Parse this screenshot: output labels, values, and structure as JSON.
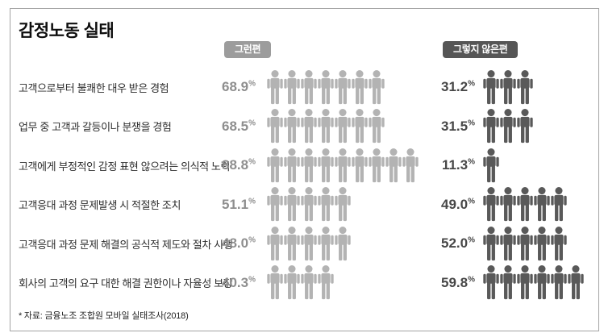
{
  "page": {
    "title": "감정노동 실태",
    "source_note": "* 자료: 금융노조 조합원 모바일 실태조사(2018)"
  },
  "legend": {
    "yes_label": "그런편",
    "no_label": "그렇지 않은편"
  },
  "colors": {
    "frame_border": "#a3a3a3",
    "yes_badge_bg": "#9c9c9c",
    "no_badge_bg": "#565656",
    "yes_pct_text": "#8e8e8e",
    "no_pct_text": "#474747",
    "yes_icon": "#b3b3b3",
    "no_icon": "#595959"
  },
  "chart_data": {
    "type": "bar",
    "variant": "pictogram",
    "title": "감정노동 실태",
    "unit": "%",
    "legend_position": "top",
    "icon_unit_percent": 10,
    "categories": [
      "고객으로부터 불쾌한 대우 받은 경험",
      "업무 중 고객과 갈등이나 분쟁을 경험",
      "고객에게 부정적인 감정 표현 않으려는 의식적 노력",
      "고객응대 과정 문제발생 시 적절한 조치",
      "고객응대 과정 문제 해결의 공식적 제도와 절차 시행",
      "회사의 고객의 요구 대한 해결  권한이나 자율성 보장"
    ],
    "series": [
      {
        "name": "그런편",
        "values": [
          68.9,
          68.5,
          88.8,
          51.1,
          48.0,
          40.3
        ],
        "icon_counts": [
          7,
          7,
          9,
          5,
          5,
          4
        ]
      },
      {
        "name": "그렇지 않은편",
        "values": [
          31.2,
          31.5,
          11.3,
          49.0,
          52.0,
          59.8
        ],
        "icon_counts": [
          3,
          3,
          1,
          5,
          5,
          6
        ]
      }
    ],
    "source": "* 자료: 금융노조 조합원 모바일 실태조사(2018)"
  }
}
